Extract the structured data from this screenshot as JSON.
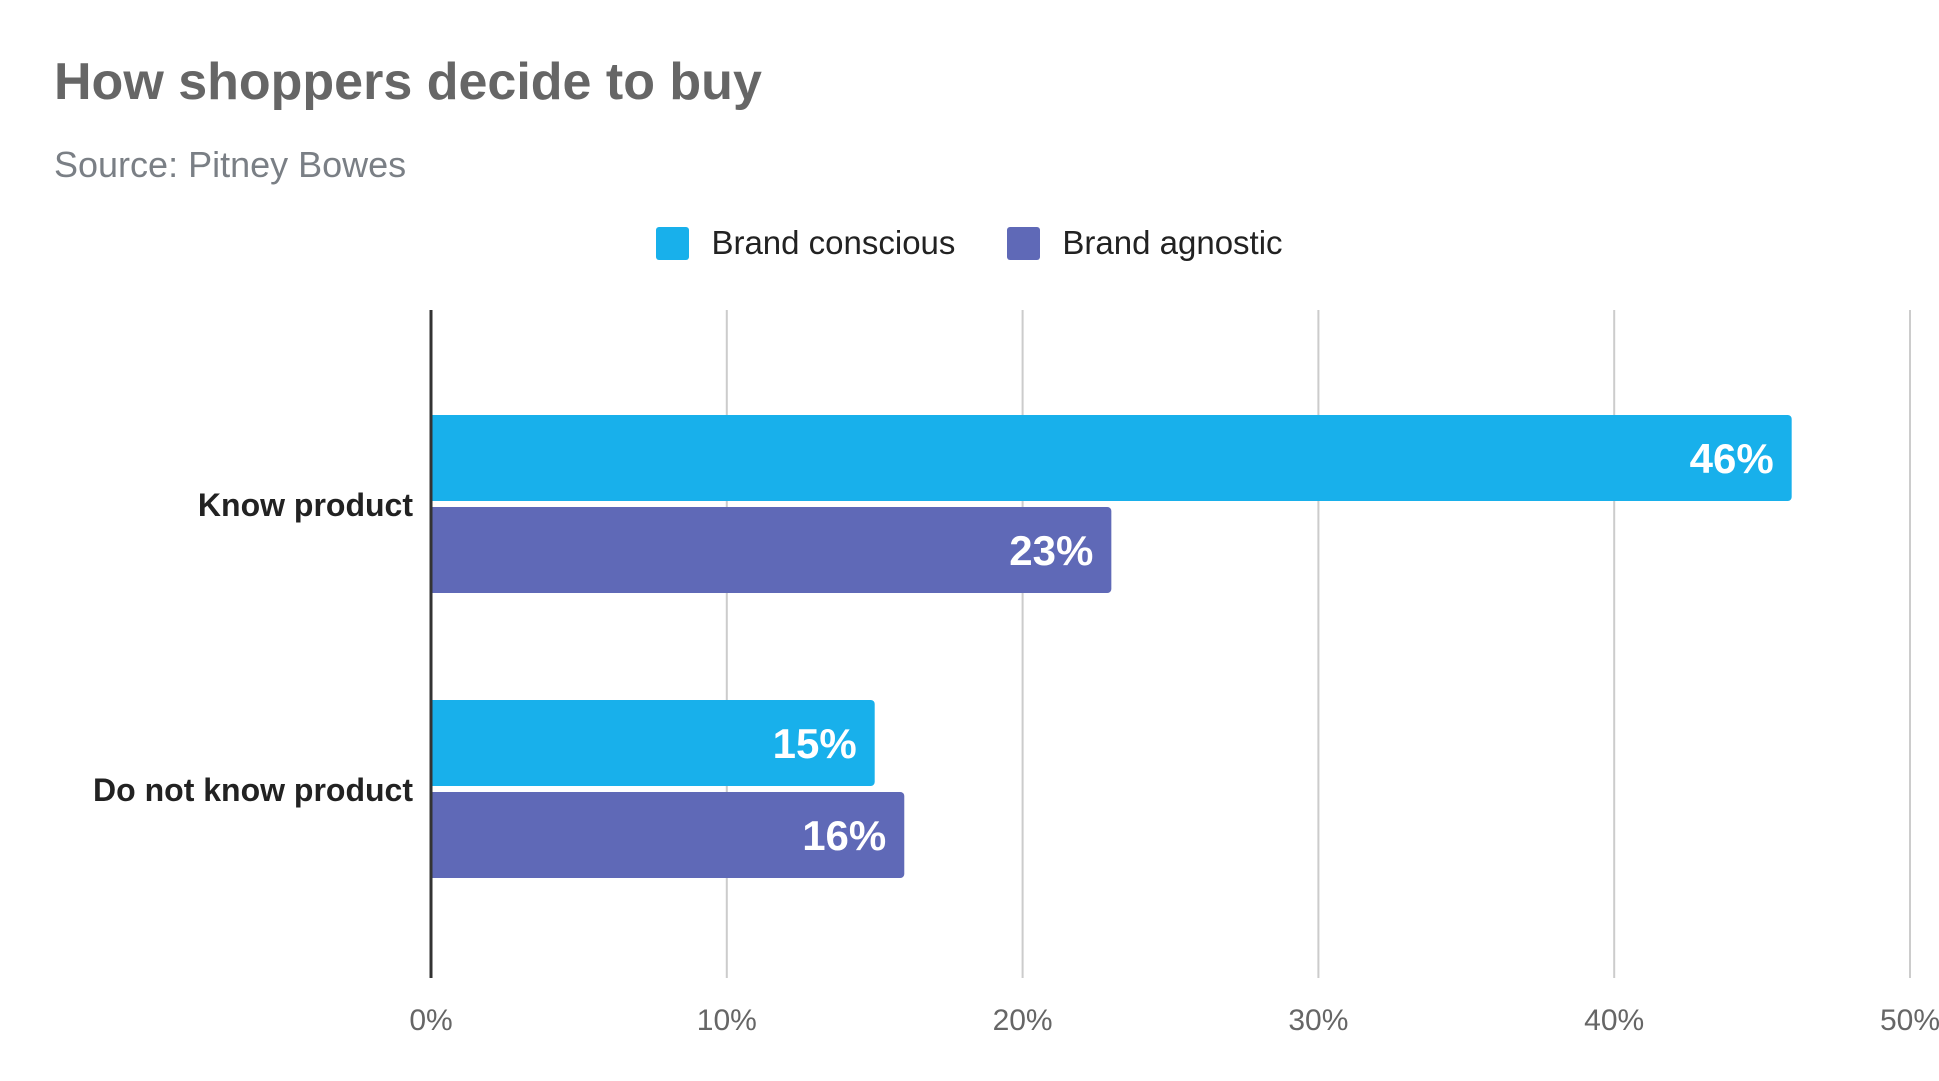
{
  "chart_data": {
    "type": "bar",
    "orientation": "horizontal",
    "title": "How shoppers decide to buy",
    "subtitle": "Source: Pitney Bowes",
    "categories": [
      "Know product",
      "Do not know product"
    ],
    "series": [
      {
        "name": "Brand conscious",
        "values": [
          46,
          15
        ],
        "color": "#18b0eb",
        "labels": [
          "46%",
          "15%"
        ]
      },
      {
        "name": "Brand agnostic",
        "values": [
          23,
          16
        ],
        "color": "#5f69b7",
        "labels": [
          "23%",
          "16%"
        ]
      }
    ],
    "xlim": [
      0,
      50
    ],
    "x_ticks": [
      0,
      10,
      20,
      30,
      40,
      50
    ],
    "x_tick_labels": [
      "0%",
      "10%",
      "20%",
      "30%",
      "40%",
      "50%"
    ],
    "grid": true,
    "legend_position": "top-center",
    "xlabel": "",
    "ylabel": ""
  }
}
